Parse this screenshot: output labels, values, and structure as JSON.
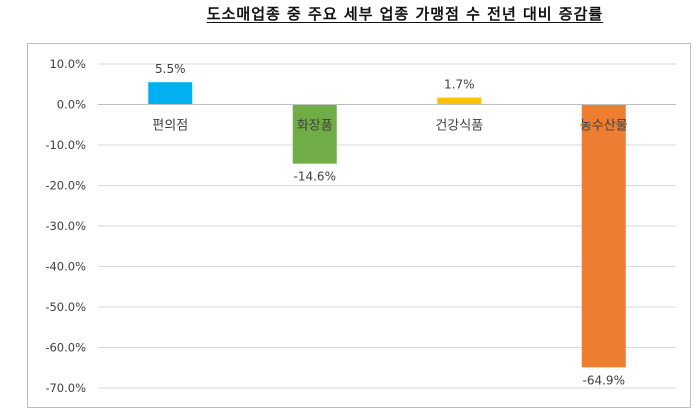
{
  "chart_data": {
    "type": "bar",
    "title": "도소매업종 중 주요 세부 업종 가맹점 수 전년 대비 증감률",
    "xlabel": "",
    "ylabel": "",
    "categories": [
      "편의점",
      "화장품",
      "건강식품",
      "농수산물"
    ],
    "values": [
      5.5,
      -14.6,
      1.7,
      -64.9
    ],
    "data_labels": [
      "5.5%",
      "-14.6%",
      "1.7%",
      "-64.9%"
    ],
    "bar_colors": [
      "#00B0F0",
      "#70AD47",
      "#FFC000",
      "#ED7D31"
    ],
    "ylim": [
      -70,
      10
    ],
    "yticks": [
      10,
      0,
      -10,
      -20,
      -30,
      -40,
      -50,
      -60,
      -70
    ],
    "ytick_labels": [
      "10.0%",
      "0.0%",
      "-10.0%",
      "-20.0%",
      "-30.0%",
      "-40.0%",
      "-50.0%",
      "-60.0%",
      "-70.0%"
    ],
    "grid": true,
    "legend": "none"
  }
}
